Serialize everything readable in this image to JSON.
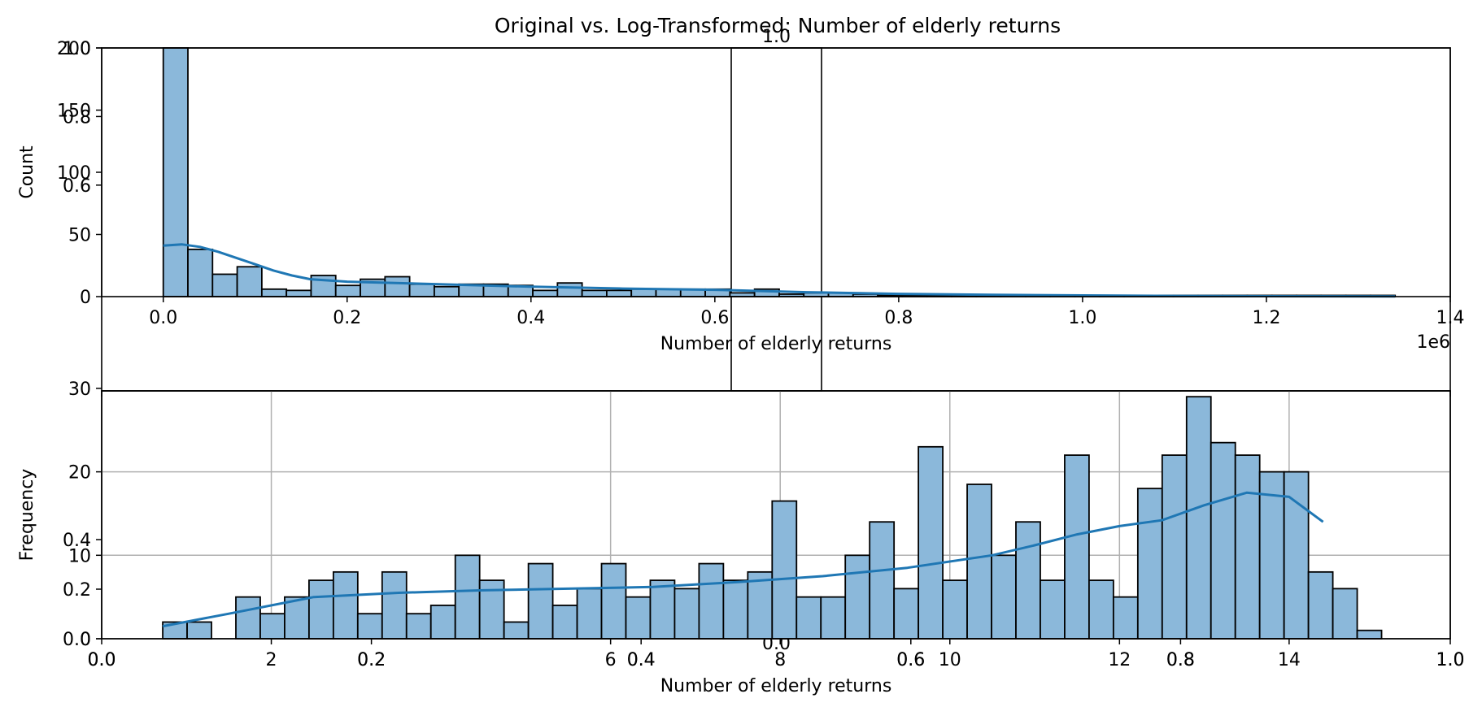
{
  "figure": {
    "title": "Original vs. Log-Transformed: Number of elderly returns"
  },
  "colors": {
    "bar_fill": "#8bb8da",
    "bar_edge": "#000000",
    "kde_line": "#1f77b4",
    "grid": "#b0b0b0"
  },
  "chart_data": [
    {
      "type": "bar",
      "subtype": "histogram_with_kde",
      "title": "",
      "xlabel": "Number of elderly returns",
      "ylabel": "Count",
      "x_offset_label": "1e6",
      "x_unit_scale": 1000000,
      "xlim": [
        -0.067,
        1.4
      ],
      "ylim": [
        0,
        200
      ],
      "x_ticks": [
        0.0,
        0.2,
        0.4,
        0.6,
        0.8,
        1.0,
        1.2,
        1.4
      ],
      "x_tick_labels": [
        "0.0",
        "0.2",
        "0.4",
        "0.6",
        "0.8",
        "1.0",
        "1.2",
        "1.4"
      ],
      "y_ticks": [
        0,
        50,
        100,
        150,
        200
      ],
      "y_tick_labels": [
        "0",
        "50",
        "100",
        "150",
        "200"
      ],
      "grid": false,
      "bin_start": 0.0,
      "bin_width": 0.0268,
      "values": [
        200,
        38,
        18,
        24,
        6,
        5,
        17,
        9,
        14,
        16,
        10,
        8,
        10,
        10,
        9,
        5,
        11,
        5,
        5,
        6,
        6,
        6,
        6,
        3,
        6,
        2,
        3,
        3,
        2,
        1,
        1,
        1,
        1,
        1,
        1,
        1,
        1,
        1,
        1,
        1,
        1,
        1,
        1,
        1,
        1,
        1,
        1,
        1,
        1,
        1
      ],
      "kde": {
        "x": [
          0.0,
          0.02,
          0.04,
          0.06,
          0.08,
          0.1,
          0.12,
          0.14,
          0.16,
          0.2,
          0.3,
          0.4,
          0.5,
          0.6,
          0.7,
          0.8,
          0.9,
          1.0,
          1.1,
          1.2,
          1.34
        ],
        "y": [
          41,
          42,
          40,
          36,
          31,
          26,
          21,
          17,
          14,
          12,
          10,
          8,
          6.5,
          5.5,
          3.5,
          2.2,
          1.5,
          1.0,
          0.6,
          0.3,
          0.1
        ]
      }
    },
    {
      "type": "bar",
      "subtype": "histogram_with_kde",
      "title": "",
      "xlabel": "Number of elderly returns",
      "ylabel": "Frequency",
      "xlim": [
        0,
        15.9
      ],
      "ylim": [
        0,
        29.7
      ],
      "x_ticks": [
        2,
        6,
        8,
        10,
        12,
        14
      ],
      "x_tick_labels": [
        "2",
        "6",
        "8",
        "10",
        "12",
        "14"
      ],
      "y_ticks": [
        0,
        10,
        20,
        30
      ],
      "y_tick_labels": [
        "0",
        "10",
        "20",
        "30"
      ],
      "grid": true,
      "bin_start": 0.72,
      "bin_width": 0.2874,
      "values": [
        2,
        2,
        0,
        5,
        3,
        5,
        7,
        8,
        3,
        8,
        3,
        4,
        10,
        7,
        2,
        9,
        4,
        6,
        9,
        5,
        7,
        6,
        9,
        7,
        8,
        16.5,
        5,
        5,
        10,
        14,
        6,
        23,
        7,
        18.5,
        10,
        14,
        7,
        22,
        7,
        5,
        18,
        22,
        29,
        23.5,
        22,
        20,
        20,
        8,
        6,
        1
      ],
      "kde": {
        "x": [
          0.72,
          1.5,
          2.5,
          3.5,
          4.5,
          5.5,
          6.5,
          7.5,
          8.5,
          9.5,
          10.5,
          11.0,
          11.5,
          12.0,
          12.5,
          13.0,
          13.5,
          14.0,
          14.4
        ],
        "y": [
          1.5,
          3.0,
          5.0,
          5.5,
          5.8,
          6.0,
          6.2,
          6.8,
          7.5,
          8.5,
          10.0,
          11.2,
          12.5,
          13.5,
          14.2,
          16.0,
          17.5,
          17.0,
          14.0
        ]
      }
    },
    {
      "type": "empty_axes",
      "xlim": [
        0,
        1
      ],
      "ylim": [
        0,
        1
      ],
      "x_ticks": [
        0.0,
        0.2,
        0.4,
        0.6,
        0.8,
        1.0
      ],
      "x_tick_labels": [
        "0.0",
        "0.2",
        "0.4",
        "0.6",
        "0.8",
        "1.0"
      ],
      "y_ticks": [
        0.6,
        0.8,
        1.0
      ],
      "y_tick_labels": [
        "0.6",
        "0.8",
        "1.0"
      ]
    },
    {
      "type": "empty_axes",
      "xlim": [
        0,
        1
      ],
      "ylim": [
        0,
        1
      ],
      "x_ticks": [
        0.0,
        0.2,
        0.4,
        0.6,
        0.8,
        1.0
      ],
      "x_tick_labels": [
        "0.0",
        "0.2",
        "0.4",
        "0.6",
        "0.8",
        "1.0"
      ],
      "y_ticks": [
        0.0,
        0.2,
        0.4
      ],
      "y_tick_labels": [
        "0.0",
        "0.2",
        "0.4"
      ]
    },
    {
      "type": "empty_axes",
      "xlim": [
        0,
        1
      ],
      "ylim": [
        0,
        1
      ],
      "x_ticks": [
        0.0
      ],
      "x_tick_labels": [
        "0.0"
      ],
      "y_ticks": [
        1.0
      ],
      "y_tick_labels": [
        "1.0"
      ]
    }
  ]
}
